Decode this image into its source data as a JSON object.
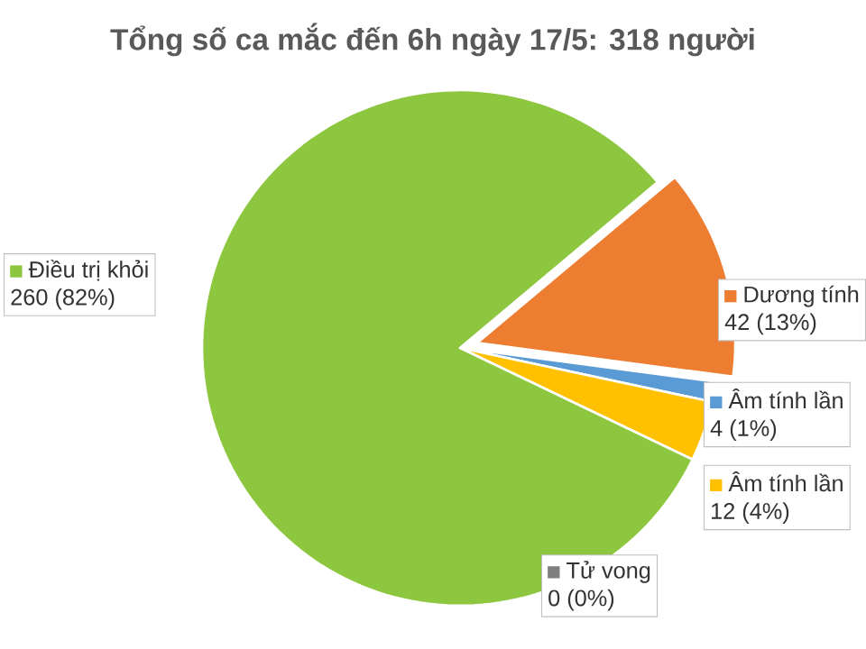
{
  "chart_data": {
    "type": "pie",
    "title": "Tổng số ca mắc đến 6h ngày 17/5: 318 người",
    "categories": [
      "Điều trị khỏi",
      "Dương tính",
      "Âm tính lần",
      "Âm tính lần",
      "Tử vong"
    ],
    "values": [
      260,
      42,
      4,
      12,
      0
    ],
    "colors": [
      "#8dc63f",
      "#ed7d31",
      "#5b9bd5",
      "#ffc000",
      "#7f7f7f"
    ],
    "value_labels": [
      "260 (82%)",
      "42 (13%)",
      "4 (1%)",
      "12 (4%)",
      "0 (0%)"
    ]
  }
}
